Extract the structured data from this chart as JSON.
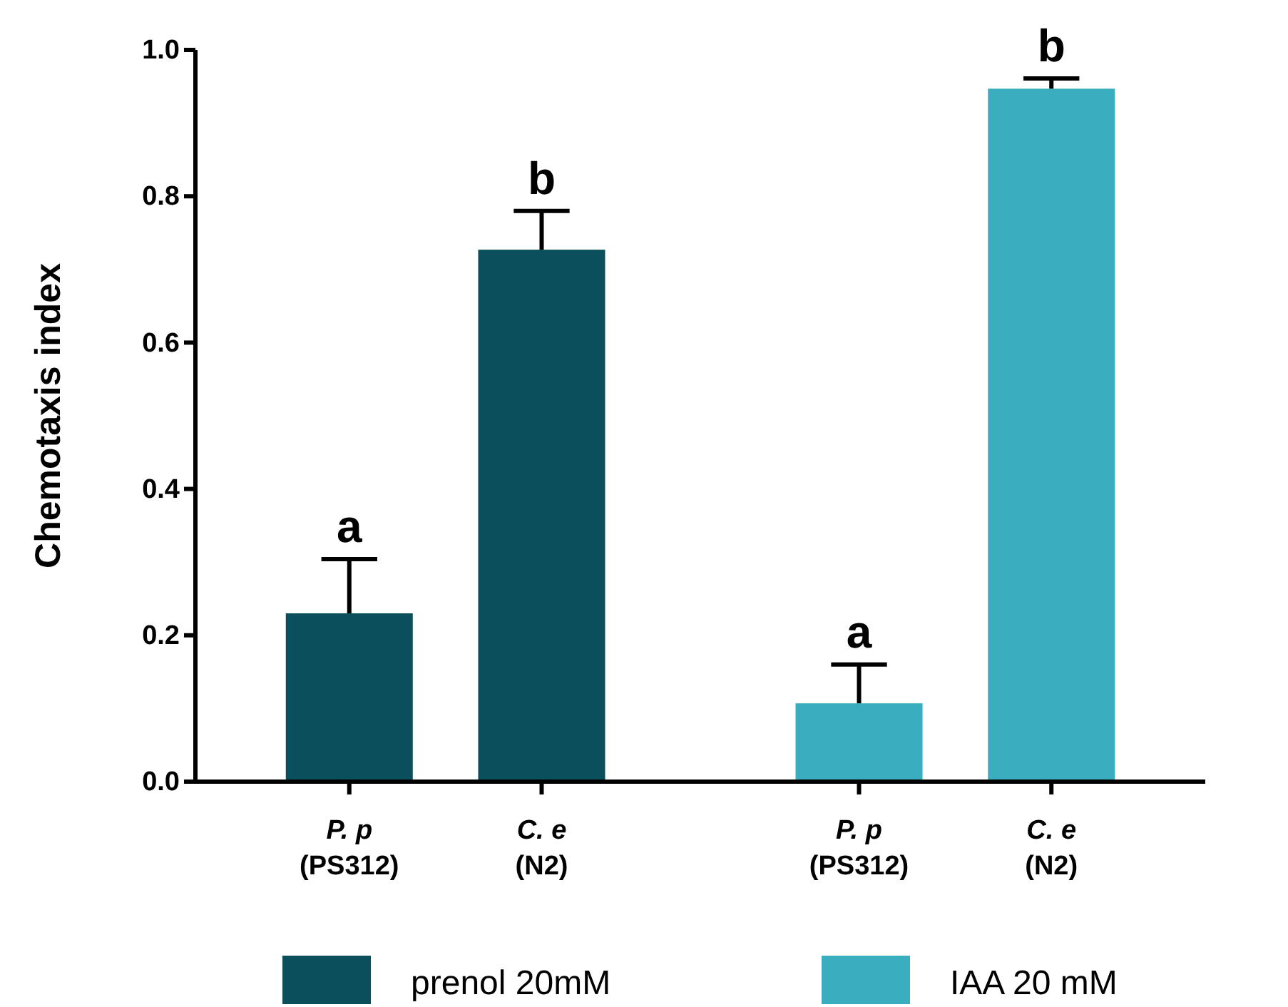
{
  "chart_data": {
    "type": "bar",
    "ylabel": "Chemotaxis index",
    "categories": [
      "P. p\n(PS312)",
      "C. e\n(N2)",
      "P. p\n(PS312)",
      "C. e\n(N2)"
    ],
    "series": [
      {
        "name": "prenol 20mM",
        "color": "#0b4f5c",
        "values": [
          0.23,
          0.727,
          null,
          null
        ],
        "errors": [
          [
            0.23,
            0.304
          ],
          [
            0.727,
            0.78
          ],
          null,
          null
        ]
      },
      {
        "name": "IAA 20 mM",
        "color": "#3aaebf",
        "values": [
          null,
          null,
          0.107,
          0.947
        ],
        "errors": [
          null,
          null,
          [
            0.107,
            0.16
          ],
          [
            0.947,
            0.961
          ]
        ]
      }
    ],
    "ylim": [
      0,
      1
    ],
    "yticks": [
      {
        "value": 0,
        "label": "0.0"
      },
      {
        "value": 0.2,
        "label": "0.2"
      },
      {
        "value": 0.4,
        "label": "0.4"
      },
      {
        "value": 0.6,
        "label": "0.6"
      },
      {
        "value": 0.8,
        "label": "0.8"
      },
      {
        "value": 1,
        "label": "1.0"
      }
    ],
    "annotations": [
      "a",
      "b",
      "a",
      "b"
    ],
    "grid": false,
    "legend": "bottom"
  }
}
